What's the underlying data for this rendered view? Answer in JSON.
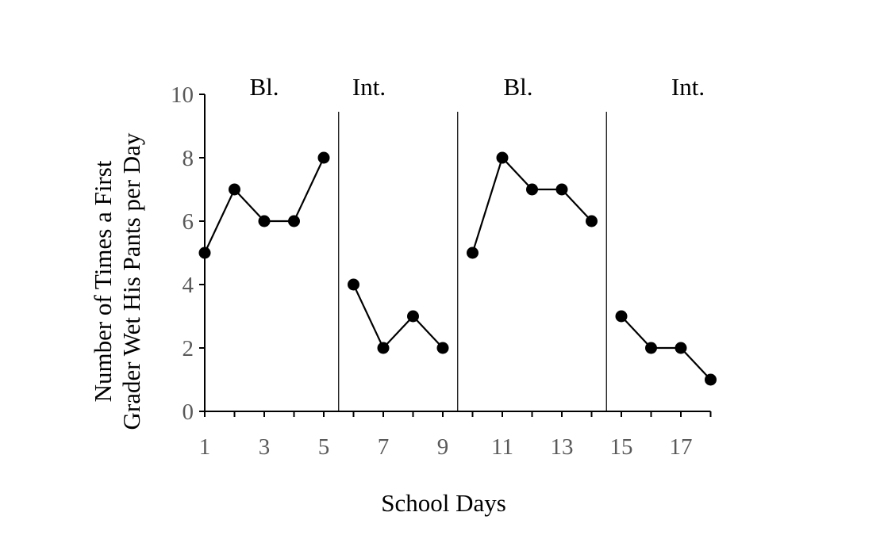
{
  "chart_data": {
    "type": "line",
    "title": "",
    "xlabel": "School Days",
    "ylabel": "Number of Times a First Grader Wet His Pants per Day",
    "ylabel_lines": [
      "Number of Times a First",
      "Grader Wet His Pants per Day"
    ],
    "xlim": [
      1,
      18
    ],
    "ylim": [
      0,
      10
    ],
    "x_ticks": [
      1,
      3,
      5,
      7,
      9,
      11,
      13,
      15,
      17
    ],
    "y_ticks": [
      0,
      2,
      4,
      6,
      8,
      10
    ],
    "grid": false,
    "legend": "none",
    "marker_color": "#000000",
    "line_color": "#000000",
    "phase_lines_x": [
      5.5,
      9.5,
      14.5
    ],
    "phases": [
      {
        "label": "Bl.",
        "days": [
          1,
          5
        ]
      },
      {
        "label": "Int.",
        "days": [
          6,
          9
        ]
      },
      {
        "label": "Bl.",
        "days": [
          10,
          14
        ]
      },
      {
        "label": "Int.",
        "days": [
          15,
          18
        ]
      }
    ],
    "series": [
      {
        "x": [
          1,
          2,
          3,
          4,
          5
        ],
        "values": [
          5,
          7,
          6,
          6,
          8
        ]
      },
      {
        "x": [
          6,
          7,
          8,
          9
        ],
        "values": [
          4,
          2,
          3,
          2
        ]
      },
      {
        "x": [
          10,
          11,
          12,
          13,
          14
        ],
        "values": [
          5,
          8,
          7,
          7,
          6
        ]
      },
      {
        "x": [
          15,
          16,
          17,
          18
        ],
        "values": [
          3,
          2,
          2,
          1
        ]
      }
    ]
  }
}
